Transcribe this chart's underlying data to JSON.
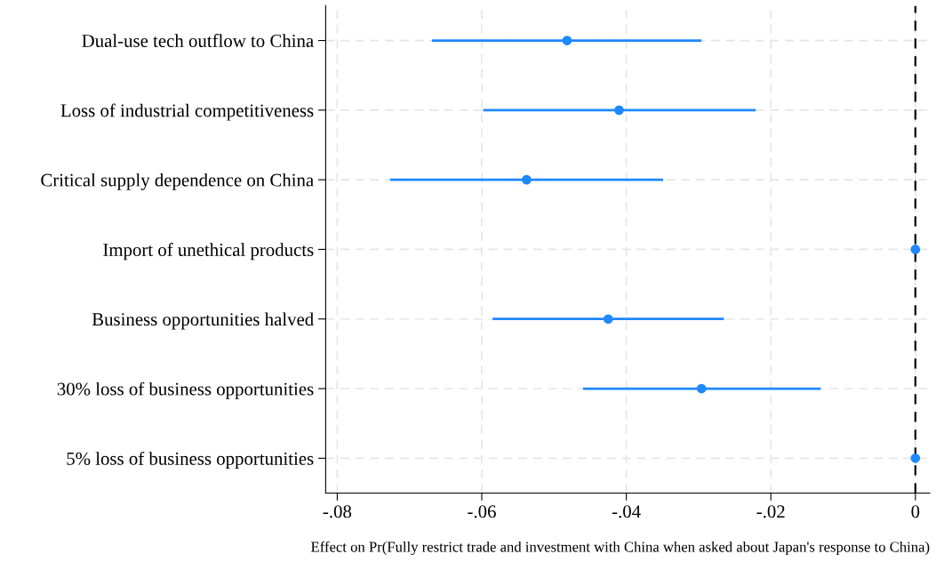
{
  "chart_data": {
    "type": "scatter",
    "orientation": "horizontal",
    "categories": [
      "Dual-use tech outflow to China",
      "Loss of industrial competitiveness",
      "Critical supply dependence on China",
      "Import of unethical products",
      "Business opportunities halved",
      "30% loss of business opportunities",
      "5% loss of business opportunities"
    ],
    "values": [
      -0.0482,
      -0.041,
      -0.0538,
      0,
      -0.0425,
      -0.0296,
      0
    ],
    "errors": [
      [
        -0.0669,
        -0.0296
      ],
      [
        -0.0598,
        -0.0221
      ],
      [
        -0.0727,
        -0.0349
      ],
      null,
      [
        -0.0585,
        -0.0265
      ],
      [
        -0.046,
        -0.0131
      ],
      null
    ],
    "color": "#1e88ff",
    "marker": "circle",
    "xlabel": "Effect on Pr(Fully restrict trade and investment with China when asked about Japan's response to China)",
    "xlim": [
      -0.0816,
      0.002
    ],
    "xticks": [
      {
        "value": -0.08,
        "label": "-.08"
      },
      {
        "value": -0.06,
        "label": "-.06"
      },
      {
        "value": -0.04,
        "label": "-.04"
      },
      {
        "value": -0.02,
        "label": "-.02"
      },
      0
    ],
    "grid": true,
    "ref_lines": [
      {
        "axis": "x",
        "value": 0,
        "color": "#000000",
        "line_style": "dashed"
      }
    ]
  }
}
